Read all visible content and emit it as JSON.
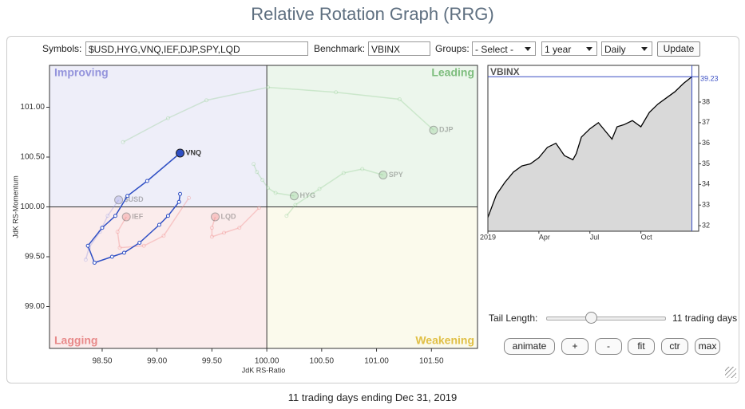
{
  "header": {
    "title": "Relative Rotation Graph (RRG)"
  },
  "controls": {
    "symbols_label": "Symbols:",
    "symbols": "$USD,HYG,VNQ,IEF,DJP,SPY,LQD",
    "benchmark_label": "Benchmark:",
    "benchmark": "VBINX",
    "groups_label": "Groups:",
    "groups": "- Select -",
    "period": "1 year",
    "interval": "Daily",
    "update": "Update"
  },
  "chart_data": [
    {
      "type": "rrg",
      "xlabel": "JdK RS-Ratio",
      "ylabel": "JdK RS-Momentum",
      "xlim": [
        98.02,
        101.92
      ],
      "ylim": [
        98.58,
        101.42
      ],
      "center": [
        100,
        100
      ],
      "xticks": [
        {
          "value": 98.5,
          "label": "98.50"
        },
        {
          "value": 99,
          "label": "99.00"
        },
        {
          "value": 99.5,
          "label": "99.50"
        },
        {
          "value": 100,
          "label": "100.00"
        },
        {
          "value": 100.5,
          "label": "100.50"
        },
        {
          "value": 101,
          "label": "101.00"
        },
        {
          "value": 101.5,
          "label": "101.50"
        }
      ],
      "yticks": [
        {
          "value": 99,
          "label": "99.00"
        },
        {
          "value": 99.5,
          "label": "99.50"
        },
        {
          "value": 100,
          "label": "100.00"
        },
        {
          "value": 100.5,
          "label": "100.50"
        },
        {
          "value": 101,
          "label": "101.00"
        }
      ],
      "quadrants": [
        {
          "name": "Improving",
          "corner": "top-left",
          "fill": "#eeeef9",
          "color": "#9494dc"
        },
        {
          "name": "Leading",
          "corner": "top-right",
          "fill": "#ecf6ec",
          "color": "#7dbd7d"
        },
        {
          "name": "Lagging",
          "corner": "bottom-left",
          "fill": "#fbecec",
          "color": "#e88a8a"
        },
        {
          "name": "Weakening",
          "corner": "bottom-right",
          "fill": "#fbfaec",
          "color": "#e0bf45"
        }
      ],
      "series": [
        {
          "name": "DJP",
          "color": "#8fcc8f",
          "opacity": 0.35,
          "x": [
            98.69,
            99.1,
            99.45,
            100.01,
            100.63,
            101.21,
            101.52
          ],
          "y": [
            100.65,
            100.89,
            101.07,
            101.2,
            101.15,
            101.08,
            100.77
          ]
        },
        {
          "name": "HYG",
          "color": "#8fcc8f",
          "opacity": 0.35,
          "x": [
            99.88,
            99.91,
            99.96,
            100.01,
            100.08,
            100.25
          ],
          "y": [
            100.43,
            100.35,
            100.27,
            100.19,
            100.14,
            100.11
          ]
        },
        {
          "name": "SPY",
          "color": "#8fcc8f",
          "opacity": 0.35,
          "x": [
            100.18,
            100.26,
            100.48,
            100.7,
            100.87,
            101.06
          ],
          "y": [
            99.91,
            100.02,
            100.18,
            100.34,
            100.38,
            100.32
          ]
        },
        {
          "name": "$USD",
          "color": "#9999e0",
          "opacity": 0.35,
          "x": [
            98.35,
            98.38,
            98.48,
            98.55,
            98.65
          ],
          "y": [
            99.47,
            99.59,
            99.75,
            99.91,
            100.07
          ]
        },
        {
          "name": "IEF",
          "color": "#f08080",
          "opacity": 0.35,
          "x": [
            99.29,
            99.06,
            98.88,
            98.66,
            98.64,
            98.72
          ],
          "y": [
            100.09,
            99.71,
            99.61,
            99.59,
            99.75,
            99.9
          ]
        },
        {
          "name": "LQD",
          "color": "#f08080",
          "opacity": 0.35,
          "x": [
            99.93,
            99.75,
            99.61,
            99.5,
            99.5,
            99.53
          ],
          "y": [
            99.99,
            99.79,
            99.74,
            99.7,
            99.79,
            99.9
          ]
        },
        {
          "name": "VNQ",
          "color": "#2f4fc4",
          "opacity": 1,
          "x": [
            99.21,
            99.2,
            99.1,
            99.02,
            98.84,
            98.7,
            98.59,
            98.43,
            98.37,
            98.5,
            98.62,
            98.73,
            98.91,
            99.21
          ],
          "y": [
            100.13,
            100.05,
            99.91,
            99.82,
            99.64,
            99.54,
            99.5,
            99.44,
            99.61,
            99.79,
            99.91,
            100.11,
            100.26,
            100.54
          ]
        }
      ]
    },
    {
      "type": "area",
      "title": "VBINX",
      "color": "#000000",
      "fill": "#d9d9d9",
      "x": [
        0,
        0.5,
        1,
        1.5,
        2,
        2.5,
        3,
        3.5,
        4,
        4.5,
        5,
        5.2,
        5.5,
        6,
        6.5,
        7,
        7.3,
        7.6,
        8,
        8.5,
        9,
        9.5,
        10,
        10.5,
        11,
        11.5,
        12
      ],
      "values": [
        32.4,
        33.5,
        34.1,
        34.6,
        34.9,
        35.0,
        35.3,
        35.8,
        36.0,
        35.4,
        35.2,
        35.5,
        36.3,
        36.7,
        37.0,
        36.5,
        36.2,
        36.8,
        36.9,
        37.1,
        36.8,
        37.5,
        37.9,
        38.2,
        38.5,
        38.9,
        39.23
      ],
      "last_value": 39.23,
      "xlim": [
        0,
        12.4
      ],
      "ylim": [
        31.73,
        39.78
      ],
      "xticks": [
        {
          "value": 0,
          "label": "2019"
        },
        {
          "value": 3,
          "label": "Apr"
        },
        {
          "value": 6,
          "label": "Jul"
        },
        {
          "value": 9,
          "label": "Oct"
        }
      ],
      "yticks": [
        32,
        33,
        34,
        35,
        36,
        37,
        38
      ]
    }
  ],
  "tail": {
    "label": "Tail Length:",
    "value_text": "11 trading days"
  },
  "buttons": [
    "animate",
    "+",
    "-",
    "fit",
    "ctr",
    "max"
  ],
  "footer": "11 trading days ending Dec 31, 2019"
}
